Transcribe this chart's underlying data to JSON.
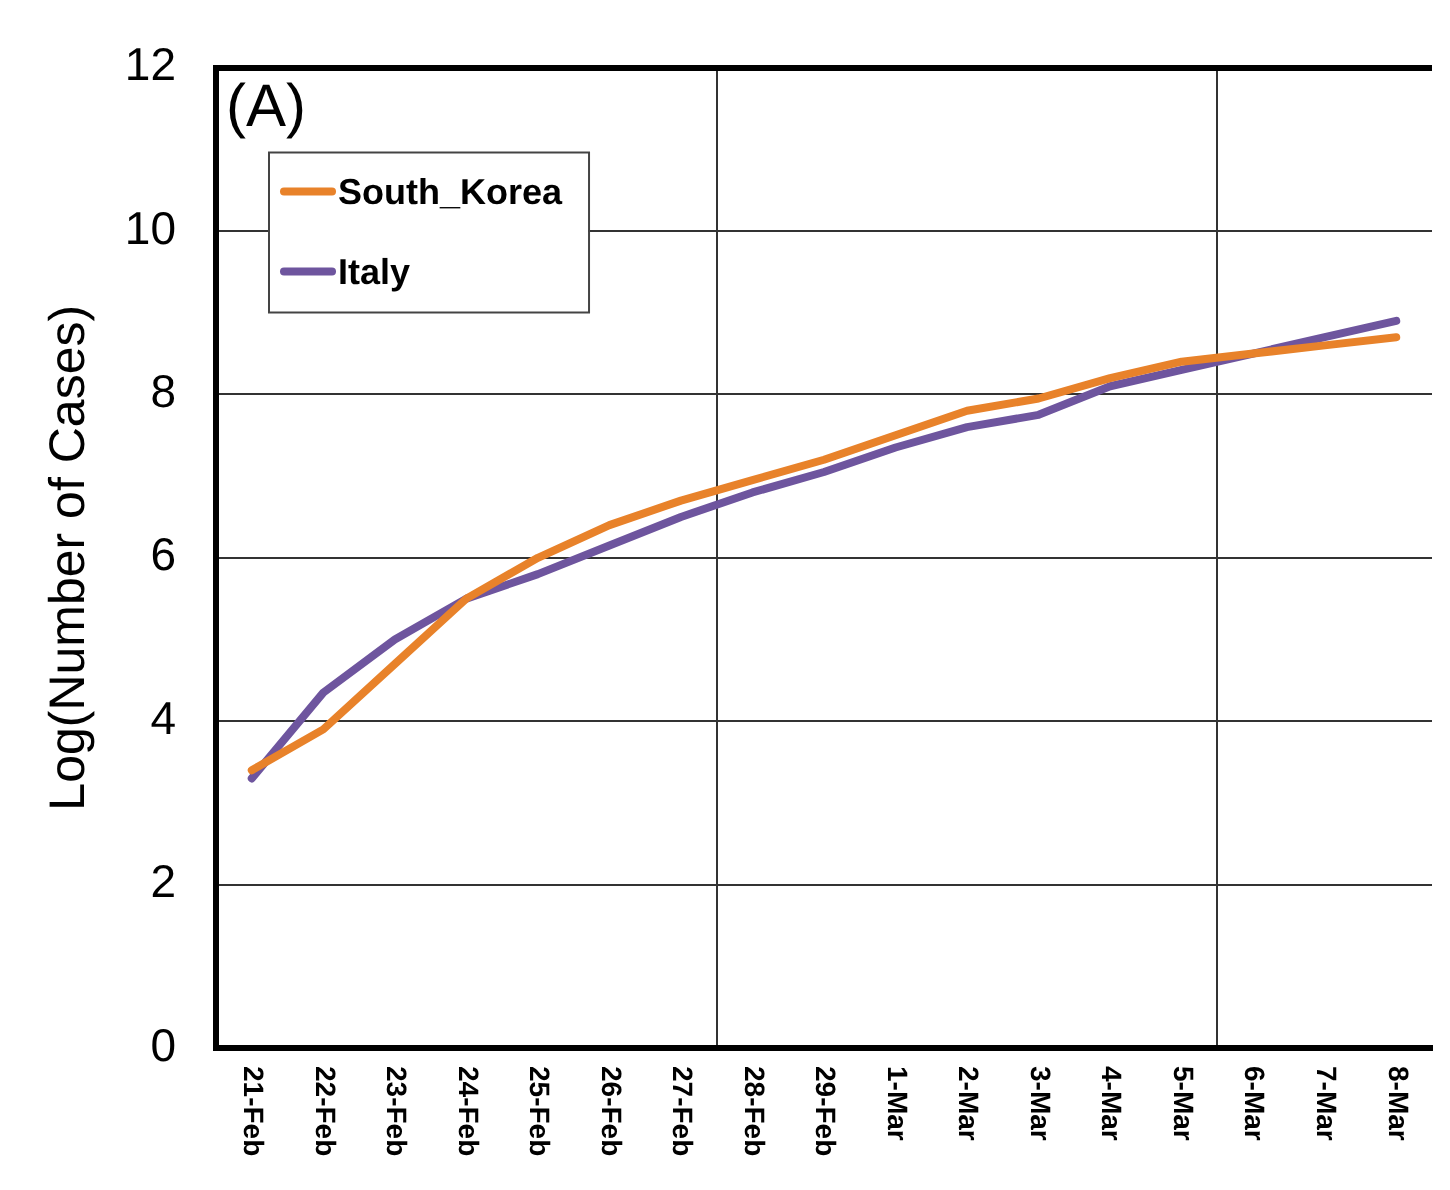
{
  "chart_data": {
    "type": "line",
    "annotations": [
      "(A)"
    ],
    "ylabel": "Log(Number of Cases)",
    "categories": [
      "21-Feb",
      "22-Feb",
      "23-Feb",
      "24-Feb",
      "25-Feb",
      "26-Feb",
      "27-Feb",
      "28-Feb",
      "29-Feb",
      "1-Mar",
      "2-Mar",
      "3-Mar",
      "4-Mar",
      "5-Mar",
      "6-Mar",
      "7-Mar",
      "8-Mar"
    ],
    "series": [
      {
        "name": "South_Korea",
        "color": "#e8822a",
        "values": [
          3.4,
          3.9,
          4.7,
          5.5,
          6.0,
          6.4,
          6.7,
          6.95,
          7.2,
          7.5,
          7.8,
          7.95,
          8.2,
          8.4,
          8.5,
          8.6,
          8.7
        ]
      },
      {
        "name": "Italy",
        "color": "#6e559e",
        "values": [
          3.3,
          4.35,
          5.0,
          5.5,
          5.8,
          6.15,
          6.5,
          6.8,
          7.05,
          7.35,
          7.6,
          7.75,
          8.1,
          8.3,
          8.5,
          8.7,
          8.9
        ]
      }
    ],
    "ylim": [
      0,
      12
    ],
    "yticks": [
      0,
      2,
      4,
      6,
      8,
      10,
      12
    ],
    "grid": true,
    "legend": "top left"
  }
}
